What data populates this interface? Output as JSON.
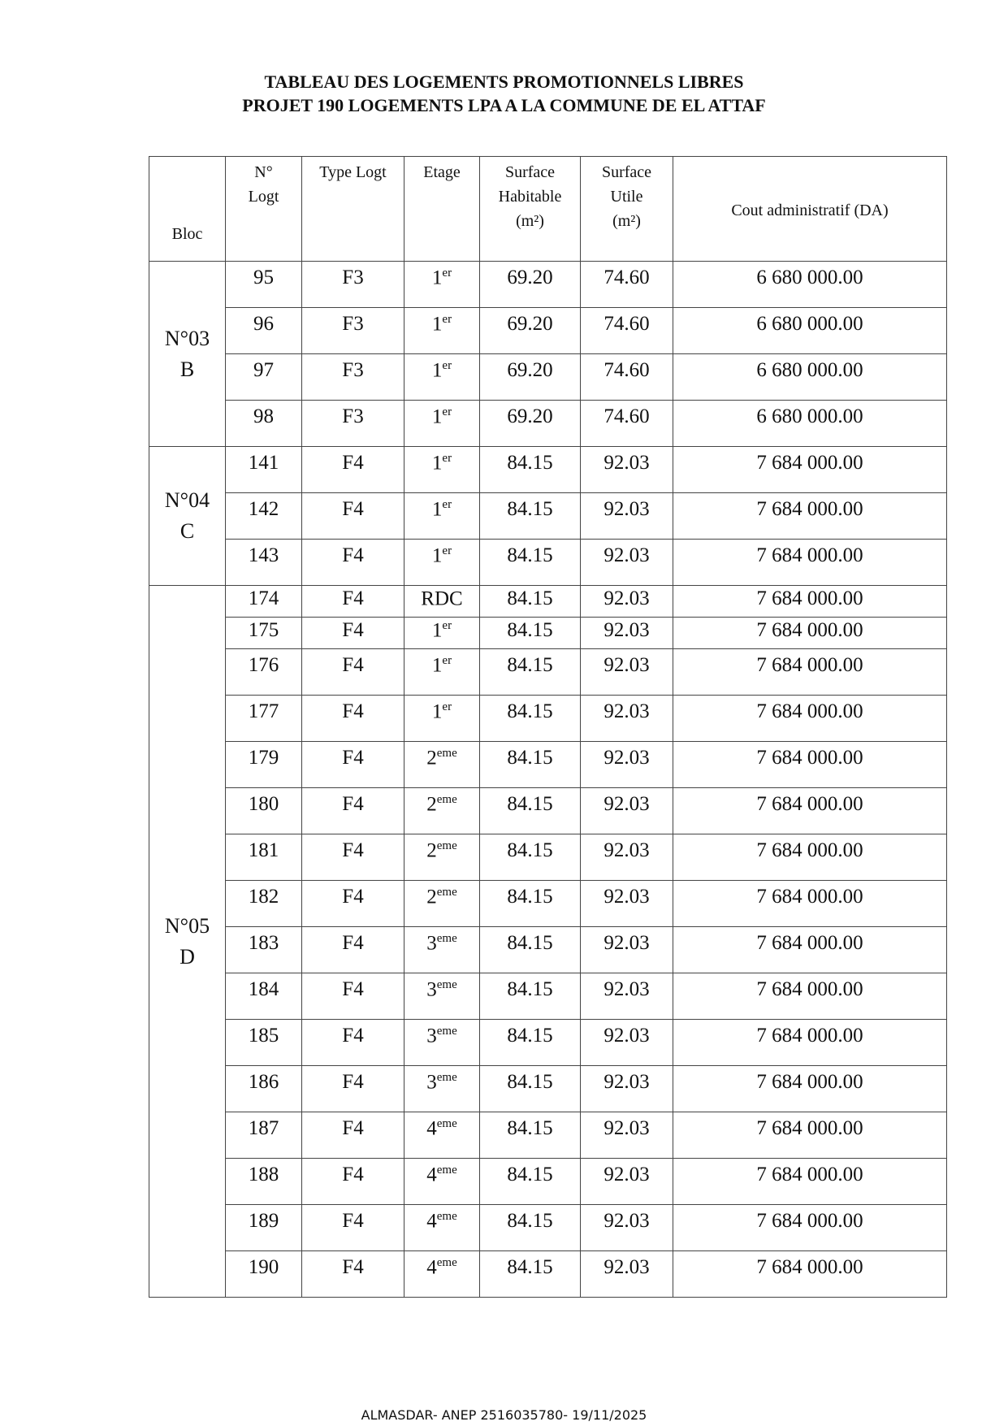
{
  "title_line1": "TABLEAU DES LOGEMENTS PROMOTIONNELS LIBRES",
  "title_line2": "PROJET 190 LOGEMENTS LPA A LA COMMUNE DE EL ATTAF",
  "headers": {
    "bloc": "Bloc",
    "no": "N°",
    "logt": "Logt",
    "type": "Type Logt",
    "etage": "Etage",
    "sh1": "Surface",
    "sh2": "Habitable",
    "sh3": "(m²)",
    "su1": "Surface",
    "su2": "Utile",
    "su3": "(m²)",
    "cout": "Cout administratif (DA)"
  },
  "blocs": [
    {
      "l1": "N°03",
      "l2": "B",
      "rows": [
        [
          "95",
          "F3",
          "1",
          "er",
          "69.20",
          "74.60",
          "6 680 000.00"
        ],
        [
          "96",
          "F3",
          "1",
          "er",
          "69.20",
          "74.60",
          "6 680 000.00"
        ],
        [
          "97",
          "F3",
          "1",
          "er",
          "69.20",
          "74.60",
          "6 680 000.00"
        ],
        [
          "98",
          "F3",
          "1",
          "er",
          "69.20",
          "74.60",
          "6 680 000.00"
        ]
      ]
    },
    {
      "l1": "N°04",
      "l2": "C",
      "rows": [
        [
          "141",
          "F4",
          "1",
          "er",
          "84.15",
          "92.03",
          "7 684 000.00"
        ],
        [
          "142",
          "F4",
          "1",
          "er",
          "84.15",
          "92.03",
          "7 684 000.00"
        ],
        [
          "143",
          "F4",
          "1",
          "er",
          "84.15",
          "92.03",
          "7 684 000.00"
        ]
      ]
    },
    {
      "l1": "N°05",
      "l2": "D",
      "rows": [
        [
          "174",
          "F4",
          "RDC",
          "",
          "84.15",
          "92.03",
          "7 684 000.00"
        ],
        [
          "175",
          "F4",
          "1",
          "er",
          "84.15",
          "92.03",
          "7 684 000.00"
        ],
        [
          "176",
          "F4",
          "1",
          "er",
          "84.15",
          "92.03",
          "7 684 000.00"
        ],
        [
          "177",
          "F4",
          "1",
          "er",
          "84.15",
          "92.03",
          "7 684 000.00"
        ],
        [
          "179",
          "F4",
          "2",
          "eme",
          "84.15",
          "92.03",
          "7 684 000.00"
        ],
        [
          "180",
          "F4",
          "2",
          "eme",
          "84.15",
          "92.03",
          "7 684 000.00"
        ],
        [
          "181",
          "F4",
          "2",
          "eme",
          "84.15",
          "92.03",
          "7 684 000.00"
        ],
        [
          "182",
          "F4",
          "2",
          "eme",
          "84.15",
          "92.03",
          "7 684 000.00"
        ],
        [
          "183",
          "F4",
          "3",
          "eme",
          "84.15",
          "92.03",
          "7 684 000.00"
        ],
        [
          "184",
          "F4",
          "3",
          "eme",
          "84.15",
          "92.03",
          "7 684 000.00"
        ],
        [
          "185",
          "F4",
          "3",
          "eme",
          "84.15",
          "92.03",
          "7 684 000.00"
        ],
        [
          "186",
          "F4",
          "3",
          "eme",
          "84.15",
          "92.03",
          "7 684 000.00"
        ],
        [
          "187",
          "F4",
          "4",
          "eme",
          "84.15",
          "92.03",
          "7 684 000.00"
        ],
        [
          "188",
          "F4",
          "4",
          "eme",
          "84.15",
          "92.03",
          "7 684 000.00"
        ],
        [
          "189",
          "F4",
          "4",
          "eme",
          "84.15",
          "92.03",
          "7 684 000.00"
        ],
        [
          "190",
          "F4",
          "4",
          "eme",
          "84.15",
          "92.03",
          "7 684 000.00"
        ]
      ]
    }
  ],
  "footer": "ALMASDAR- ANEP 2516035780- 19/11/2025"
}
